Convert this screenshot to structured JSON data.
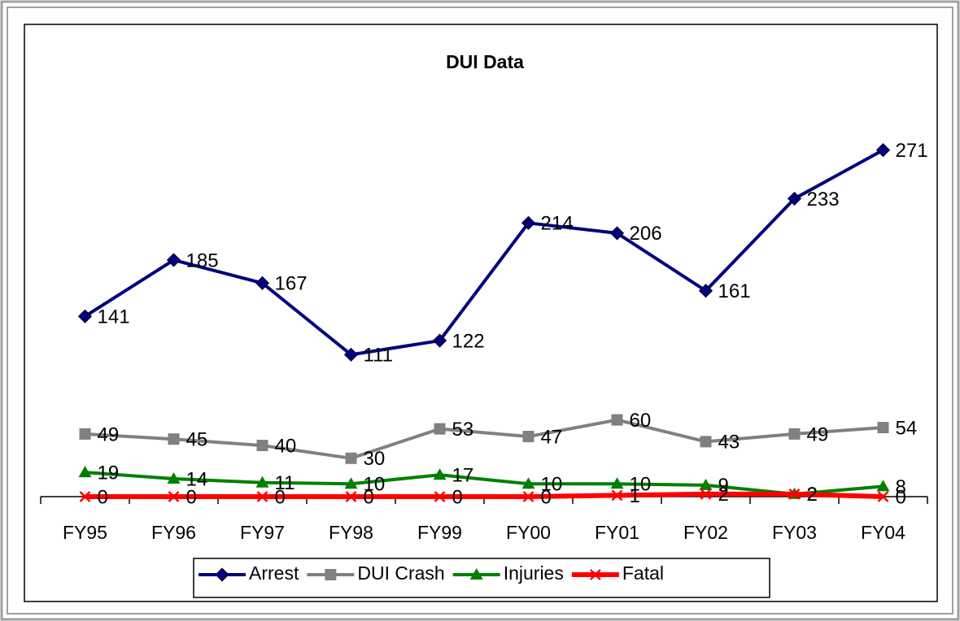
{
  "chart_data": {
    "type": "line",
    "title": "DUI Data",
    "categories": [
      "FY95",
      "FY96",
      "FY97",
      "FY98",
      "FY99",
      "FY00",
      "FY01",
      "FY02",
      "FY03",
      "FY04"
    ],
    "series": [
      {
        "name": "Arrest",
        "color": "#000080",
        "values": [
          141,
          185,
          167,
          111,
          122,
          214,
          206,
          161,
          233,
          271
        ]
      },
      {
        "name": "DUI Crash",
        "color": "#808080",
        "values": [
          49,
          45,
          40,
          30,
          53,
          47,
          60,
          43,
          49,
          54
        ]
      },
      {
        "name": "Injuries",
        "color": "#008000",
        "values": [
          19,
          14,
          11,
          10,
          17,
          10,
          10,
          9,
          2,
          8
        ]
      },
      {
        "name": "Fatal",
        "color": "#ff0000",
        "values": [
          0,
          0,
          0,
          0,
          0,
          0,
          1,
          2,
          2,
          0
        ]
      }
    ],
    "ylim": [
      0,
      300
    ],
    "legend": "bottom"
  }
}
